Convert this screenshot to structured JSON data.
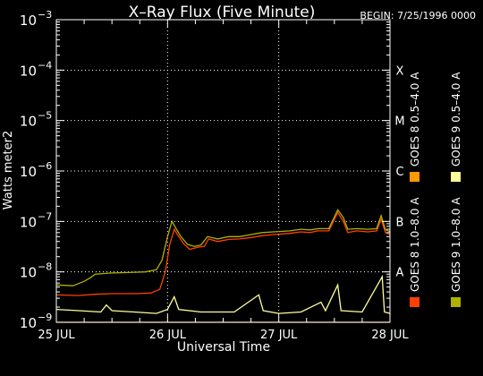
{
  "chart_data": {
    "type": "line",
    "title": "X–Ray Flux (Five Minute)",
    "begin_label": "BEGIN: 7/25/1996 0000",
    "ylabel": "Watts meter2",
    "xlabel": "Universal Time",
    "y_scale": "log",
    "ylim": [
      1e-09,
      0.001
    ],
    "xlim_days": [
      0,
      3
    ],
    "y_ticks": [
      {
        "value": 1e-09,
        "base": "10",
        "exp": "−9"
      },
      {
        "value": 1e-08,
        "base": "10",
        "exp": "−8"
      },
      {
        "value": 1e-07,
        "base": "10",
        "exp": "−7"
      },
      {
        "value": 1e-06,
        "base": "10",
        "exp": "−6"
      },
      {
        "value": 1e-05,
        "base": "10",
        "exp": "−5"
      },
      {
        "value": 0.0001,
        "base": "10",
        "exp": "−4"
      },
      {
        "value": 0.001,
        "base": "10",
        "exp": "−3"
      }
    ],
    "x_ticks": [
      {
        "day": 0,
        "label": "25 JUL"
      },
      {
        "day": 1,
        "label": "26 JUL"
      },
      {
        "day": 2,
        "label": "27 JUL"
      },
      {
        "day": 3,
        "label": "28 JUL"
      }
    ],
    "flare_classes": [
      {
        "label": "A",
        "value": 1e-08
      },
      {
        "label": "B",
        "value": 1e-07
      },
      {
        "label": "C",
        "value": 1e-06
      },
      {
        "label": "M",
        "value": 1e-05
      },
      {
        "label": "X",
        "value": 0.0001
      }
    ],
    "legend_placement": "right-outside-vertical",
    "series": [
      {
        "name": "GOES 8 1.0–8.0 A",
        "color": "#ff4000",
        "points": [
          [
            0,
            3.5e-09
          ],
          [
            0.2,
            3.4e-09
          ],
          [
            0.35,
            3.6e-09
          ],
          [
            0.5,
            3.7e-09
          ],
          [
            0.7,
            3.7e-09
          ],
          [
            0.85,
            3.8e-09
          ],
          [
            0.93,
            4.5e-09
          ],
          [
            0.98,
            1e-08
          ],
          [
            1.02,
            3.5e-08
          ],
          [
            1.06,
            7e-08
          ],
          [
            1.1,
            5e-08
          ],
          [
            1.15,
            3.5e-08
          ],
          [
            1.2,
            2.8e-08
          ],
          [
            1.28,
            3.1e-08
          ],
          [
            1.33,
            3.2e-08
          ],
          [
            1.37,
            4.5e-08
          ],
          [
            1.45,
            4e-08
          ],
          [
            1.55,
            4.4e-08
          ],
          [
            1.65,
            4.5e-08
          ],
          [
            1.75,
            4.8e-08
          ],
          [
            1.85,
            5.2e-08
          ],
          [
            1.95,
            5.5e-08
          ],
          [
            2.1,
            5.8e-08
          ],
          [
            2.2,
            6.2e-08
          ],
          [
            2.28,
            6e-08
          ],
          [
            2.35,
            6.5e-08
          ],
          [
            2.45,
            6.5e-08
          ],
          [
            2.53,
            1.5e-07
          ],
          [
            2.58,
            1e-07
          ],
          [
            2.62,
            6e-08
          ],
          [
            2.7,
            6.5e-08
          ],
          [
            2.8,
            6.2e-08
          ],
          [
            2.88,
            6.5e-08
          ],
          [
            2.92,
            1.1e-07
          ],
          [
            2.96,
            6e-08
          ],
          [
            3,
            5.5e-08
          ]
        ]
      },
      {
        "name": "GOES 8 0.5–4.0 A",
        "color": "#ff9900",
        "points": [
          [
            0,
            1e-09
          ],
          [
            3,
            1e-09
          ]
        ]
      },
      {
        "name": "GOES 9 1.0–8.0 A",
        "color": "#b0b000",
        "points": [
          [
            0,
            5.5e-09
          ],
          [
            0.15,
            5.3e-09
          ],
          [
            0.25,
            6.5e-09
          ],
          [
            0.3,
            7.5e-09
          ],
          [
            0.35,
            9e-09
          ],
          [
            0.5,
            9.5e-09
          ],
          [
            0.65,
            9.7e-09
          ],
          [
            0.8,
            1e-08
          ],
          [
            0.9,
            1.1e-08
          ],
          [
            0.95,
            1.7e-08
          ],
          [
            1.0,
            5e-08
          ],
          [
            1.04,
            1e-07
          ],
          [
            1.08,
            7e-08
          ],
          [
            1.12,
            5e-08
          ],
          [
            1.18,
            3.5e-08
          ],
          [
            1.24,
            3.2e-08
          ],
          [
            1.3,
            3.4e-08
          ],
          [
            1.36,
            5e-08
          ],
          [
            1.45,
            4.5e-08
          ],
          [
            1.55,
            5e-08
          ],
          [
            1.65,
            5e-08
          ],
          [
            1.75,
            5.5e-08
          ],
          [
            1.85,
            6e-08
          ],
          [
            1.95,
            6.2e-08
          ],
          [
            2.1,
            6.5e-08
          ],
          [
            2.2,
            7e-08
          ],
          [
            2.28,
            6.8e-08
          ],
          [
            2.36,
            7.2e-08
          ],
          [
            2.45,
            7.2e-08
          ],
          [
            2.53,
            1.7e-07
          ],
          [
            2.58,
            1.2e-07
          ],
          [
            2.62,
            7e-08
          ],
          [
            2.7,
            7.2e-08
          ],
          [
            2.8,
            7e-08
          ],
          [
            2.88,
            7.2e-08
          ],
          [
            2.92,
            1.3e-07
          ],
          [
            2.96,
            6.8e-08
          ],
          [
            3,
            6.3e-08
          ]
        ]
      },
      {
        "name": "GOES 9 0.5–4.0 A",
        "color": "#ffff99",
        "points": [
          [
            0,
            1.8e-09
          ],
          [
            0.2,
            1.7e-09
          ],
          [
            0.4,
            1.6e-09
          ],
          [
            0.45,
            2.2e-09
          ],
          [
            0.5,
            1.7e-09
          ],
          [
            0.7,
            1.6e-09
          ],
          [
            0.9,
            1.5e-09
          ],
          [
            1.0,
            1.8e-09
          ],
          [
            1.06,
            3.2e-09
          ],
          [
            1.1,
            1.8e-09
          ],
          [
            1.3,
            1.6e-09
          ],
          [
            1.6,
            1.6e-09
          ],
          [
            1.82,
            3.5e-09
          ],
          [
            1.86,
            1.7e-09
          ],
          [
            2.0,
            1.5e-09
          ],
          [
            2.2,
            1.6e-09
          ],
          [
            2.38,
            2.5e-09
          ],
          [
            2.42,
            1.7e-09
          ],
          [
            2.53,
            5.5e-09
          ],
          [
            2.56,
            1.7e-09
          ],
          [
            2.75,
            1.6e-09
          ],
          [
            2.93,
            8e-09
          ],
          [
            2.95,
            1.6e-09
          ],
          [
            3,
            1.5e-09
          ]
        ]
      }
    ]
  }
}
